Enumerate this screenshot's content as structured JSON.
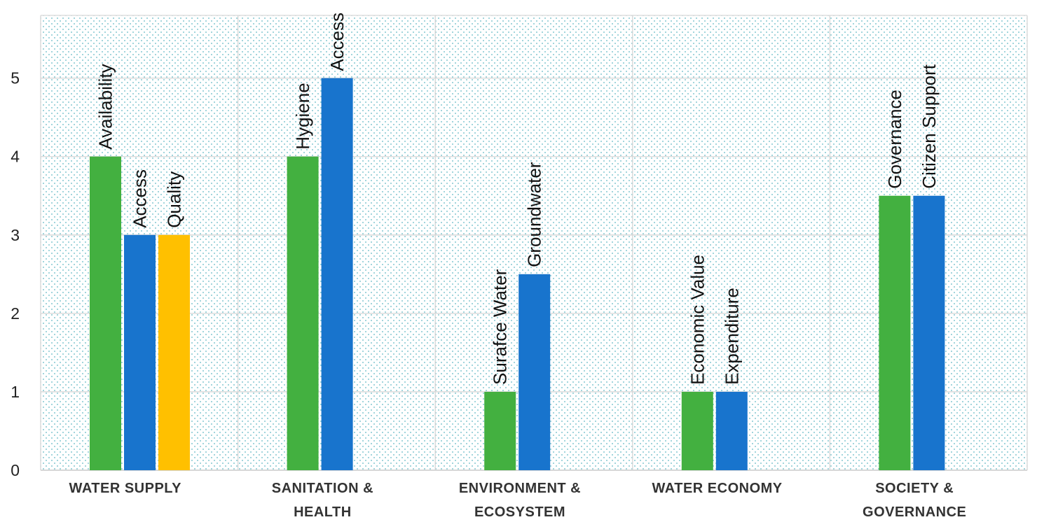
{
  "chart_data": {
    "type": "bar",
    "title": "",
    "xlabel": "",
    "ylabel": "",
    "ylim": [
      0,
      5.8
    ],
    "yticks": [
      0,
      1,
      2,
      3,
      4,
      5
    ],
    "grid": true,
    "colors": {
      "green": "#43b040",
      "blue": "#1874cd",
      "yellow": "#ffc000",
      "grid": "#d6d6d6",
      "dots": "#5fb7c2"
    },
    "groups": [
      {
        "category_lines": [
          "WATER SUPPLY"
        ],
        "bars": [
          {
            "label": "Availability",
            "value": 4,
            "color": "#43b040"
          },
          {
            "label": "Access",
            "value": 3,
            "color": "#1874cd"
          },
          {
            "label": "Quality",
            "value": 3,
            "color": "#ffc000"
          }
        ]
      },
      {
        "category_lines": [
          "SANITATION &",
          "HEALTH"
        ],
        "bars": [
          {
            "label": "Hygiene",
            "value": 4,
            "color": "#43b040"
          },
          {
            "label": "Access",
            "value": 5,
            "color": "#1874cd"
          }
        ]
      },
      {
        "category_lines": [
          "ENVIRONMENT &",
          "ECOSYSTEM"
        ],
        "bars": [
          {
            "label": "Surafce Water",
            "value": 1,
            "color": "#43b040"
          },
          {
            "label": "Groundwater",
            "value": 2.5,
            "color": "#1874cd"
          }
        ]
      },
      {
        "category_lines": [
          "WATER ECONOMY"
        ],
        "bars": [
          {
            "label": "Economic Value",
            "value": 1,
            "color": "#43b040"
          },
          {
            "label": "Expenditure",
            "value": 1,
            "color": "#1874cd"
          }
        ]
      },
      {
        "category_lines": [
          "SOCIETY &",
          "GOVERNANCE"
        ],
        "bars": [
          {
            "label": "Governance",
            "value": 3.5,
            "color": "#43b040"
          },
          {
            "label": "Citizen Support",
            "value": 3.5,
            "color": "#1874cd"
          }
        ]
      }
    ]
  }
}
